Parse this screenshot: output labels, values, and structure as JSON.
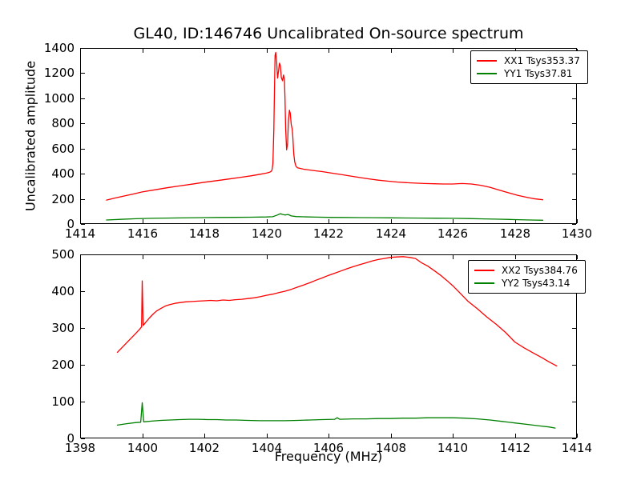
{
  "figure": {
    "title": "GL40, ID:146746 Uncalibrated On-source spectrum",
    "ylabel": "Uncalibrated amplitude",
    "xlabel": "Frequency (MHz)"
  },
  "colors": {
    "xx": "#ff0000",
    "yy": "#008000",
    "axis": "#000000",
    "background": "#ffffff"
  },
  "chart_data": [
    {
      "type": "line",
      "subplot": "top",
      "title": "GL40, ID:146746 Uncalibrated On-source spectrum",
      "xlabel": "",
      "ylabel": "Uncalibrated amplitude",
      "xlim": [
        1414,
        1430
      ],
      "ylim": [
        0,
        1400
      ],
      "xticks": [
        1414,
        1416,
        1418,
        1420,
        1422,
        1424,
        1426,
        1428,
        1430
      ],
      "yticks": [
        0,
        200,
        400,
        600,
        800,
        1000,
        1200,
        1400
      ],
      "grid": false,
      "legend_position": "upper right",
      "legend": [
        {
          "label": "XX1 Tsys353.37",
          "color": "#ff0000"
        },
        {
          "label": "YY1 Tsys37.81",
          "color": "#008000"
        }
      ],
      "series": [
        {
          "name": "XX1",
          "color": "#ff0000",
          "points": [
            [
              1414.85,
              190
            ],
            [
              1415.1,
              205
            ],
            [
              1415.4,
              222
            ],
            [
              1415.7,
              238
            ],
            [
              1416.0,
              255
            ],
            [
              1416.4,
              272
            ],
            [
              1416.8,
              288
            ],
            [
              1417.2,
              303
            ],
            [
              1417.6,
              317
            ],
            [
              1418.0,
              332
            ],
            [
              1418.4,
              345
            ],
            [
              1418.8,
              358
            ],
            [
              1419.2,
              372
            ],
            [
              1419.5,
              383
            ],
            [
              1419.8,
              396
            ],
            [
              1420.0,
              405
            ],
            [
              1420.1,
              412
            ],
            [
              1420.15,
              418
            ],
            [
              1420.18,
              430
            ],
            [
              1420.21,
              480
            ],
            [
              1420.24,
              760
            ],
            [
              1420.26,
              1080
            ],
            [
              1420.28,
              1340
            ],
            [
              1420.3,
              1365
            ],
            [
              1420.33,
              1290
            ],
            [
              1420.36,
              1160
            ],
            [
              1420.39,
              1215
            ],
            [
              1420.42,
              1280
            ],
            [
              1420.45,
              1260
            ],
            [
              1420.48,
              1165
            ],
            [
              1420.52,
              1140
            ],
            [
              1420.55,
              1185
            ],
            [
              1420.58,
              1150
            ],
            [
              1420.6,
              1000
            ],
            [
              1420.62,
              760
            ],
            [
              1420.65,
              590
            ],
            [
              1420.68,
              640
            ],
            [
              1420.71,
              820
            ],
            [
              1420.74,
              905
            ],
            [
              1420.77,
              880
            ],
            [
              1420.8,
              790
            ],
            [
              1420.83,
              755
            ],
            [
              1420.85,
              700
            ],
            [
              1420.88,
              560
            ],
            [
              1420.91,
              495
            ],
            [
              1420.95,
              460
            ],
            [
              1421.0,
              447
            ],
            [
              1421.2,
              436
            ],
            [
              1421.5,
              426
            ],
            [
              1421.8,
              417
            ],
            [
              1422.1,
              405
            ],
            [
              1422.4,
              394
            ],
            [
              1422.7,
              382
            ],
            [
              1423.0,
              370
            ],
            [
              1423.3,
              359
            ],
            [
              1423.6,
              349
            ],
            [
              1423.9,
              341
            ],
            [
              1424.2,
              334
            ],
            [
              1424.5,
              329
            ],
            [
              1424.8,
              325
            ],
            [
              1425.1,
              322
            ],
            [
              1425.4,
              320
            ],
            [
              1425.7,
              318
            ],
            [
              1426.0,
              318
            ],
            [
              1426.3,
              322
            ],
            [
              1426.6,
              318
            ],
            [
              1426.9,
              308
            ],
            [
              1427.2,
              292
            ],
            [
              1427.5,
              270
            ],
            [
              1427.8,
              248
            ],
            [
              1428.1,
              228
            ],
            [
              1428.4,
              212
            ],
            [
              1428.6,
              202
            ],
            [
              1428.9,
              193
            ]
          ]
        },
        {
          "name": "YY1",
          "color": "#008000",
          "points": [
            [
              1414.85,
              32
            ],
            [
              1415.3,
              37
            ],
            [
              1415.8,
              42
            ],
            [
              1416.3,
              45
            ],
            [
              1417.0,
              48
            ],
            [
              1417.7,
              50
            ],
            [
              1418.4,
              52
            ],
            [
              1419.0,
              53
            ],
            [
              1419.5,
              54
            ],
            [
              1420.0,
              56
            ],
            [
              1420.2,
              58
            ],
            [
              1420.35,
              71
            ],
            [
              1420.45,
              82
            ],
            [
              1420.5,
              77
            ],
            [
              1420.6,
              72
            ],
            [
              1420.7,
              76
            ],
            [
              1420.8,
              64
            ],
            [
              1420.95,
              59
            ],
            [
              1421.2,
              57
            ],
            [
              1421.6,
              55
            ],
            [
              1422.0,
              53
            ],
            [
              1422.5,
              52
            ],
            [
              1423.0,
              51
            ],
            [
              1423.5,
              50
            ],
            [
              1424.0,
              49
            ],
            [
              1424.5,
              48
            ],
            [
              1425.0,
              47
            ],
            [
              1425.5,
              46
            ],
            [
              1426.0,
              45
            ],
            [
              1426.5,
              43
            ],
            [
              1427.0,
              41
            ],
            [
              1427.5,
              38
            ],
            [
              1428.0,
              35
            ],
            [
              1428.5,
              32
            ],
            [
              1428.9,
              30
            ]
          ]
        }
      ]
    },
    {
      "type": "line",
      "subplot": "bottom",
      "title": "",
      "xlabel": "Frequency (MHz)",
      "ylabel": "",
      "xlim": [
        1398,
        1414
      ],
      "ylim": [
        0,
        500
      ],
      "xticks": [
        1398,
        1400,
        1402,
        1404,
        1406,
        1408,
        1410,
        1412,
        1414
      ],
      "yticks": [
        0,
        100,
        200,
        300,
        400,
        500
      ],
      "grid": false,
      "legend_position": "upper right",
      "legend": [
        {
          "label": "XX2 Tsys384.76",
          "color": "#ff0000"
        },
        {
          "label": "YY2 Tsys43.14",
          "color": "#008000"
        }
      ],
      "series": [
        {
          "name": "XX2",
          "color": "#ff0000",
          "points": [
            [
              1399.2,
              234
            ],
            [
              1399.35,
              247
            ],
            [
              1399.5,
              260
            ],
            [
              1399.65,
              273
            ],
            [
              1399.8,
              286
            ],
            [
              1399.9,
              295
            ],
            [
              1399.98,
              303
            ],
            [
              1400.0,
              428
            ],
            [
              1400.03,
              307
            ],
            [
              1400.12,
              316
            ],
            [
              1400.22,
              326
            ],
            [
              1400.34,
              337
            ],
            [
              1400.46,
              346
            ],
            [
              1400.6,
              353
            ],
            [
              1400.75,
              360
            ],
            [
              1400.9,
              364
            ],
            [
              1401.05,
              367
            ],
            [
              1401.2,
              369
            ],
            [
              1401.4,
              371
            ],
            [
              1401.6,
              372
            ],
            [
              1401.8,
              373
            ],
            [
              1402.0,
              374
            ],
            [
              1402.2,
              375
            ],
            [
              1402.4,
              374
            ],
            [
              1402.6,
              376
            ],
            [
              1402.8,
              375
            ],
            [
              1403.0,
              377
            ],
            [
              1403.2,
              378
            ],
            [
              1403.4,
              380
            ],
            [
              1403.6,
              382
            ],
            [
              1403.8,
              385
            ],
            [
              1404.0,
              389
            ],
            [
              1404.2,
              392
            ],
            [
              1404.4,
              396
            ],
            [
              1404.6,
              400
            ],
            [
              1404.8,
              405
            ],
            [
              1405.0,
              411
            ],
            [
              1405.2,
              417
            ],
            [
              1405.4,
              423
            ],
            [
              1405.6,
              430
            ],
            [
              1405.8,
              436
            ],
            [
              1406.0,
              443
            ],
            [
              1406.2,
              449
            ],
            [
              1406.4,
              455
            ],
            [
              1406.6,
              461
            ],
            [
              1406.8,
              467
            ],
            [
              1407.0,
              472
            ],
            [
              1407.2,
              477
            ],
            [
              1407.4,
              482
            ],
            [
              1407.6,
              486
            ],
            [
              1407.8,
              489
            ],
            [
              1408.0,
              492
            ],
            [
              1408.2,
              493
            ],
            [
              1408.4,
              494
            ],
            [
              1408.6,
              492
            ],
            [
              1408.8,
              489
            ],
            [
              1409.0,
              477
            ],
            [
              1409.2,
              468
            ],
            [
              1409.4,
              456
            ],
            [
              1409.6,
              444
            ],
            [
              1409.8,
              430
            ],
            [
              1410.0,
              415
            ],
            [
              1410.2,
              398
            ],
            [
              1410.5,
              372
            ],
            [
              1410.8,
              352
            ],
            [
              1411.1,
              330
            ],
            [
              1411.4,
              310
            ],
            [
              1411.7,
              288
            ],
            [
              1412.0,
              262
            ],
            [
              1412.3,
              246
            ],
            [
              1412.6,
              232
            ],
            [
              1412.9,
              218
            ],
            [
              1413.1,
              208
            ],
            [
              1413.35,
              197
            ]
          ]
        },
        {
          "name": "YY2",
          "color": "#008000",
          "points": [
            [
              1399.2,
              36
            ],
            [
              1399.5,
              40
            ],
            [
              1399.8,
              43
            ],
            [
              1399.95,
              44
            ],
            [
              1400.0,
              97
            ],
            [
              1400.05,
              45
            ],
            [
              1400.3,
              47
            ],
            [
              1400.6,
              49
            ],
            [
              1400.9,
              50
            ],
            [
              1401.2,
              51
            ],
            [
              1401.5,
              52
            ],
            [
              1401.8,
              52
            ],
            [
              1402.1,
              51
            ],
            [
              1402.4,
              51
            ],
            [
              1402.7,
              50
            ],
            [
              1403.0,
              50
            ],
            [
              1403.4,
              49
            ],
            [
              1403.8,
              48
            ],
            [
              1404.2,
              48
            ],
            [
              1404.6,
              48
            ],
            [
              1405.0,
              49
            ],
            [
              1405.4,
              50
            ],
            [
              1405.8,
              51
            ],
            [
              1406.2,
              52
            ],
            [
              1406.28,
              56
            ],
            [
              1406.36,
              52
            ],
            [
              1406.8,
              53
            ],
            [
              1407.2,
              53
            ],
            [
              1407.6,
              54
            ],
            [
              1408.0,
              54
            ],
            [
              1408.4,
              55
            ],
            [
              1408.8,
              55
            ],
            [
              1409.2,
              56
            ],
            [
              1409.6,
              56
            ],
            [
              1410.0,
              56
            ],
            [
              1410.4,
              55
            ],
            [
              1410.8,
              53
            ],
            [
              1411.2,
              50
            ],
            [
              1411.6,
              46
            ],
            [
              1412.0,
              42
            ],
            [
              1412.4,
              38
            ],
            [
              1412.8,
              34
            ],
            [
              1413.1,
              31
            ],
            [
              1413.3,
              28
            ]
          ]
        }
      ]
    }
  ]
}
